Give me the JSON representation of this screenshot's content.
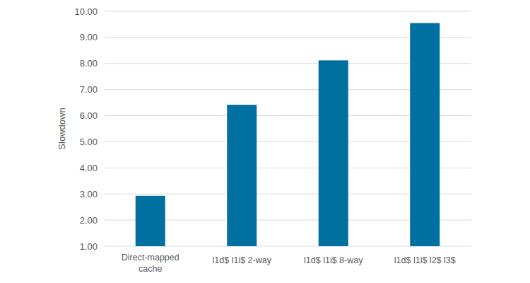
{
  "chart_data": {
    "type": "bar",
    "y_label": "Slowdown",
    "categories": [
      "Direct-mapped cache",
      "l1d$ l1i$ 2-way",
      "l1d$ l1i$ 8-way",
      "l1d$ l1i$ l2$ l3$"
    ],
    "values": [
      2.93,
      6.42,
      8.12,
      9.55
    ],
    "color": "#0070a0",
    "ylim": [
      1,
      10
    ],
    "yticks": [
      {
        "value": 1,
        "label": "1.00"
      },
      {
        "value": 2,
        "label": "2.00"
      },
      {
        "value": 3,
        "label": "3.00"
      },
      {
        "value": 4,
        "label": "4.00"
      },
      {
        "value": 5,
        "label": "5.00"
      },
      {
        "value": 6,
        "label": "6.00"
      },
      {
        "value": 7,
        "label": "7.00"
      },
      {
        "value": 8,
        "label": "8.00"
      },
      {
        "value": 9,
        "label": "9.00"
      },
      {
        "value": 10,
        "label": "10.00"
      }
    ],
    "grid": true
  }
}
